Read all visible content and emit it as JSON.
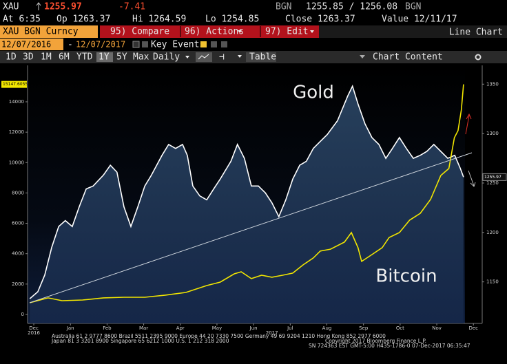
{
  "header": {
    "ticker": "XAU",
    "last": "1255.97",
    "change": "-7.41",
    "source": "BGN",
    "bid_ask": "1255.85 / 1256.08",
    "source2": "BGN",
    "time": "At 6:35",
    "open": "Op 1263.37",
    "high": "Hi 1264.59",
    "low": "Lo 1254.85",
    "close": "Close 1263.37",
    "value_date": "Value 12/11/17"
  },
  "toolbar": {
    "security": "XAU BGN Curncy",
    "compare": "95) Compare",
    "actions": "96) Actions",
    "edit": "97) Edit",
    "chart_type": "Line Chart",
    "start": "12/07/2016",
    "dash": "-",
    "end": "12/07/2017",
    "key_events": "Key Events",
    "periods": [
      "1D",
      "3D",
      "1M",
      "6M",
      "YTD",
      "1Y",
      "5Y",
      "Max"
    ],
    "frequency": "Daily",
    "table": "Table",
    "chart_content": "Chart Content"
  },
  "chart_data": {
    "type": "line",
    "xlim": [
      -0.17,
      12.24
    ],
    "xticks": [
      {
        "value": 0,
        "label": "Dec"
      },
      {
        "value": 1,
        "label": "Jan"
      },
      {
        "value": 2,
        "label": "Feb"
      },
      {
        "value": 3,
        "label": "Mar"
      },
      {
        "value": 4,
        "label": "Apr"
      },
      {
        "value": 5,
        "label": "May"
      },
      {
        "value": 6,
        "label": "Jun"
      },
      {
        "value": 7,
        "label": "Jul"
      },
      {
        "value": 8,
        "label": "Aug"
      },
      {
        "value": 9,
        "label": "Sep"
      },
      {
        "value": 10,
        "label": "Oct"
      },
      {
        "value": 11,
        "label": "Nov"
      },
      {
        "value": 12,
        "label": "Dec"
      }
    ],
    "year_labels": [
      {
        "value": 0,
        "label": "2016"
      },
      {
        "value": 6.5,
        "label": "2017"
      }
    ],
    "ylim": [
      -590,
      16400
    ],
    "yticks": [
      0,
      2000,
      4000,
      6000,
      8000,
      10000,
      12000,
      14000
    ],
    "y2lim": [
      1108,
      1369
    ],
    "y2ticks": [
      1150,
      1200,
      1250,
      1300,
      1350
    ],
    "series": [
      {
        "name": "Gold",
        "color": "#ffffff",
        "axis": "y2",
        "x": [
          -0.11,
          0.11,
          0.3,
          0.49,
          0.68,
          0.86,
          1.05,
          1.24,
          1.43,
          1.62,
          1.9,
          2.09,
          2.27,
          2.46,
          2.65,
          2.84,
          3.03,
          3.21,
          3.5,
          3.68,
          3.87,
          4.06,
          4.19,
          4.34,
          4.53,
          4.72,
          4.91,
          5.09,
          5.38,
          5.56,
          5.75,
          5.94,
          6.13,
          6.32,
          6.5,
          6.69,
          6.88,
          7.07,
          7.26,
          7.44,
          7.63,
          7.82,
          8.01,
          8.29,
          8.57,
          8.7,
          8.85,
          9.04,
          9.23,
          9.42,
          9.61,
          9.79,
          9.98,
          10.17,
          10.36,
          10.55,
          10.73,
          10.92,
          11.11,
          11.3,
          11.49,
          11.64,
          11.73
        ],
        "values": [
          1133,
          1140,
          1157,
          1185,
          1206,
          1212,
          1206,
          1226,
          1244,
          1247,
          1258,
          1268,
          1261,
          1226,
          1206,
          1226,
          1247,
          1258,
          1278,
          1289,
          1285,
          1289,
          1278,
          1247,
          1237,
          1233,
          1244,
          1254,
          1272,
          1289,
          1275,
          1247,
          1247,
          1240,
          1230,
          1216,
          1233,
          1254,
          1268,
          1272,
          1285,
          1292,
          1299,
          1313,
          1338,
          1348,
          1330,
          1310,
          1296,
          1289,
          1275,
          1285,
          1296,
          1285,
          1275,
          1278,
          1282,
          1289,
          1282,
          1275,
          1278,
          1265,
          1255.97
        ]
      },
      {
        "name": "Bitcoin",
        "color": "#f2e600",
        "axis": "y",
        "x": [
          -0.11,
          0.39,
          0.77,
          1.33,
          1.9,
          2.46,
          3.03,
          3.59,
          4.15,
          4.72,
          5.09,
          5.47,
          5.66,
          5.94,
          6.22,
          6.5,
          6.79,
          7.07,
          7.35,
          7.63,
          7.82,
          8.1,
          8.48,
          8.67,
          8.85,
          8.95,
          9.23,
          9.51,
          9.7,
          9.98,
          10.26,
          10.55,
          10.83,
          11.11,
          11.33,
          11.48,
          11.58,
          11.67,
          11.73
        ],
        "values": [
          770,
          1090,
          906,
          950,
          1090,
          1130,
          1130,
          1270,
          1450,
          1900,
          2130,
          2670,
          2810,
          2360,
          2580,
          2450,
          2580,
          2720,
          3260,
          3720,
          4170,
          4300,
          4760,
          5390,
          4400,
          3490,
          3940,
          4400,
          5070,
          5390,
          6210,
          6660,
          7570,
          9150,
          9610,
          11640,
          12100,
          13460,
          15147.6055
        ]
      }
    ]
  },
  "footer": [
    "Australia 61 2 9777 8600 Brazil 5511 2395 9000 Europe 44 20 7330 7500 Germany 49 69 9204 1210 Hong Kong 852 2977 6000",
    "Japan 81 3 3201 8900   Singapore 65 6212 1000   U.S. 1 212 318 2000",
    "Copyright 2017 Bloomberg Finance L.P.",
    "SN 724363 EST  GMT-5:00 H435-1786-0 07-Dec-2017 06:35:47"
  ]
}
